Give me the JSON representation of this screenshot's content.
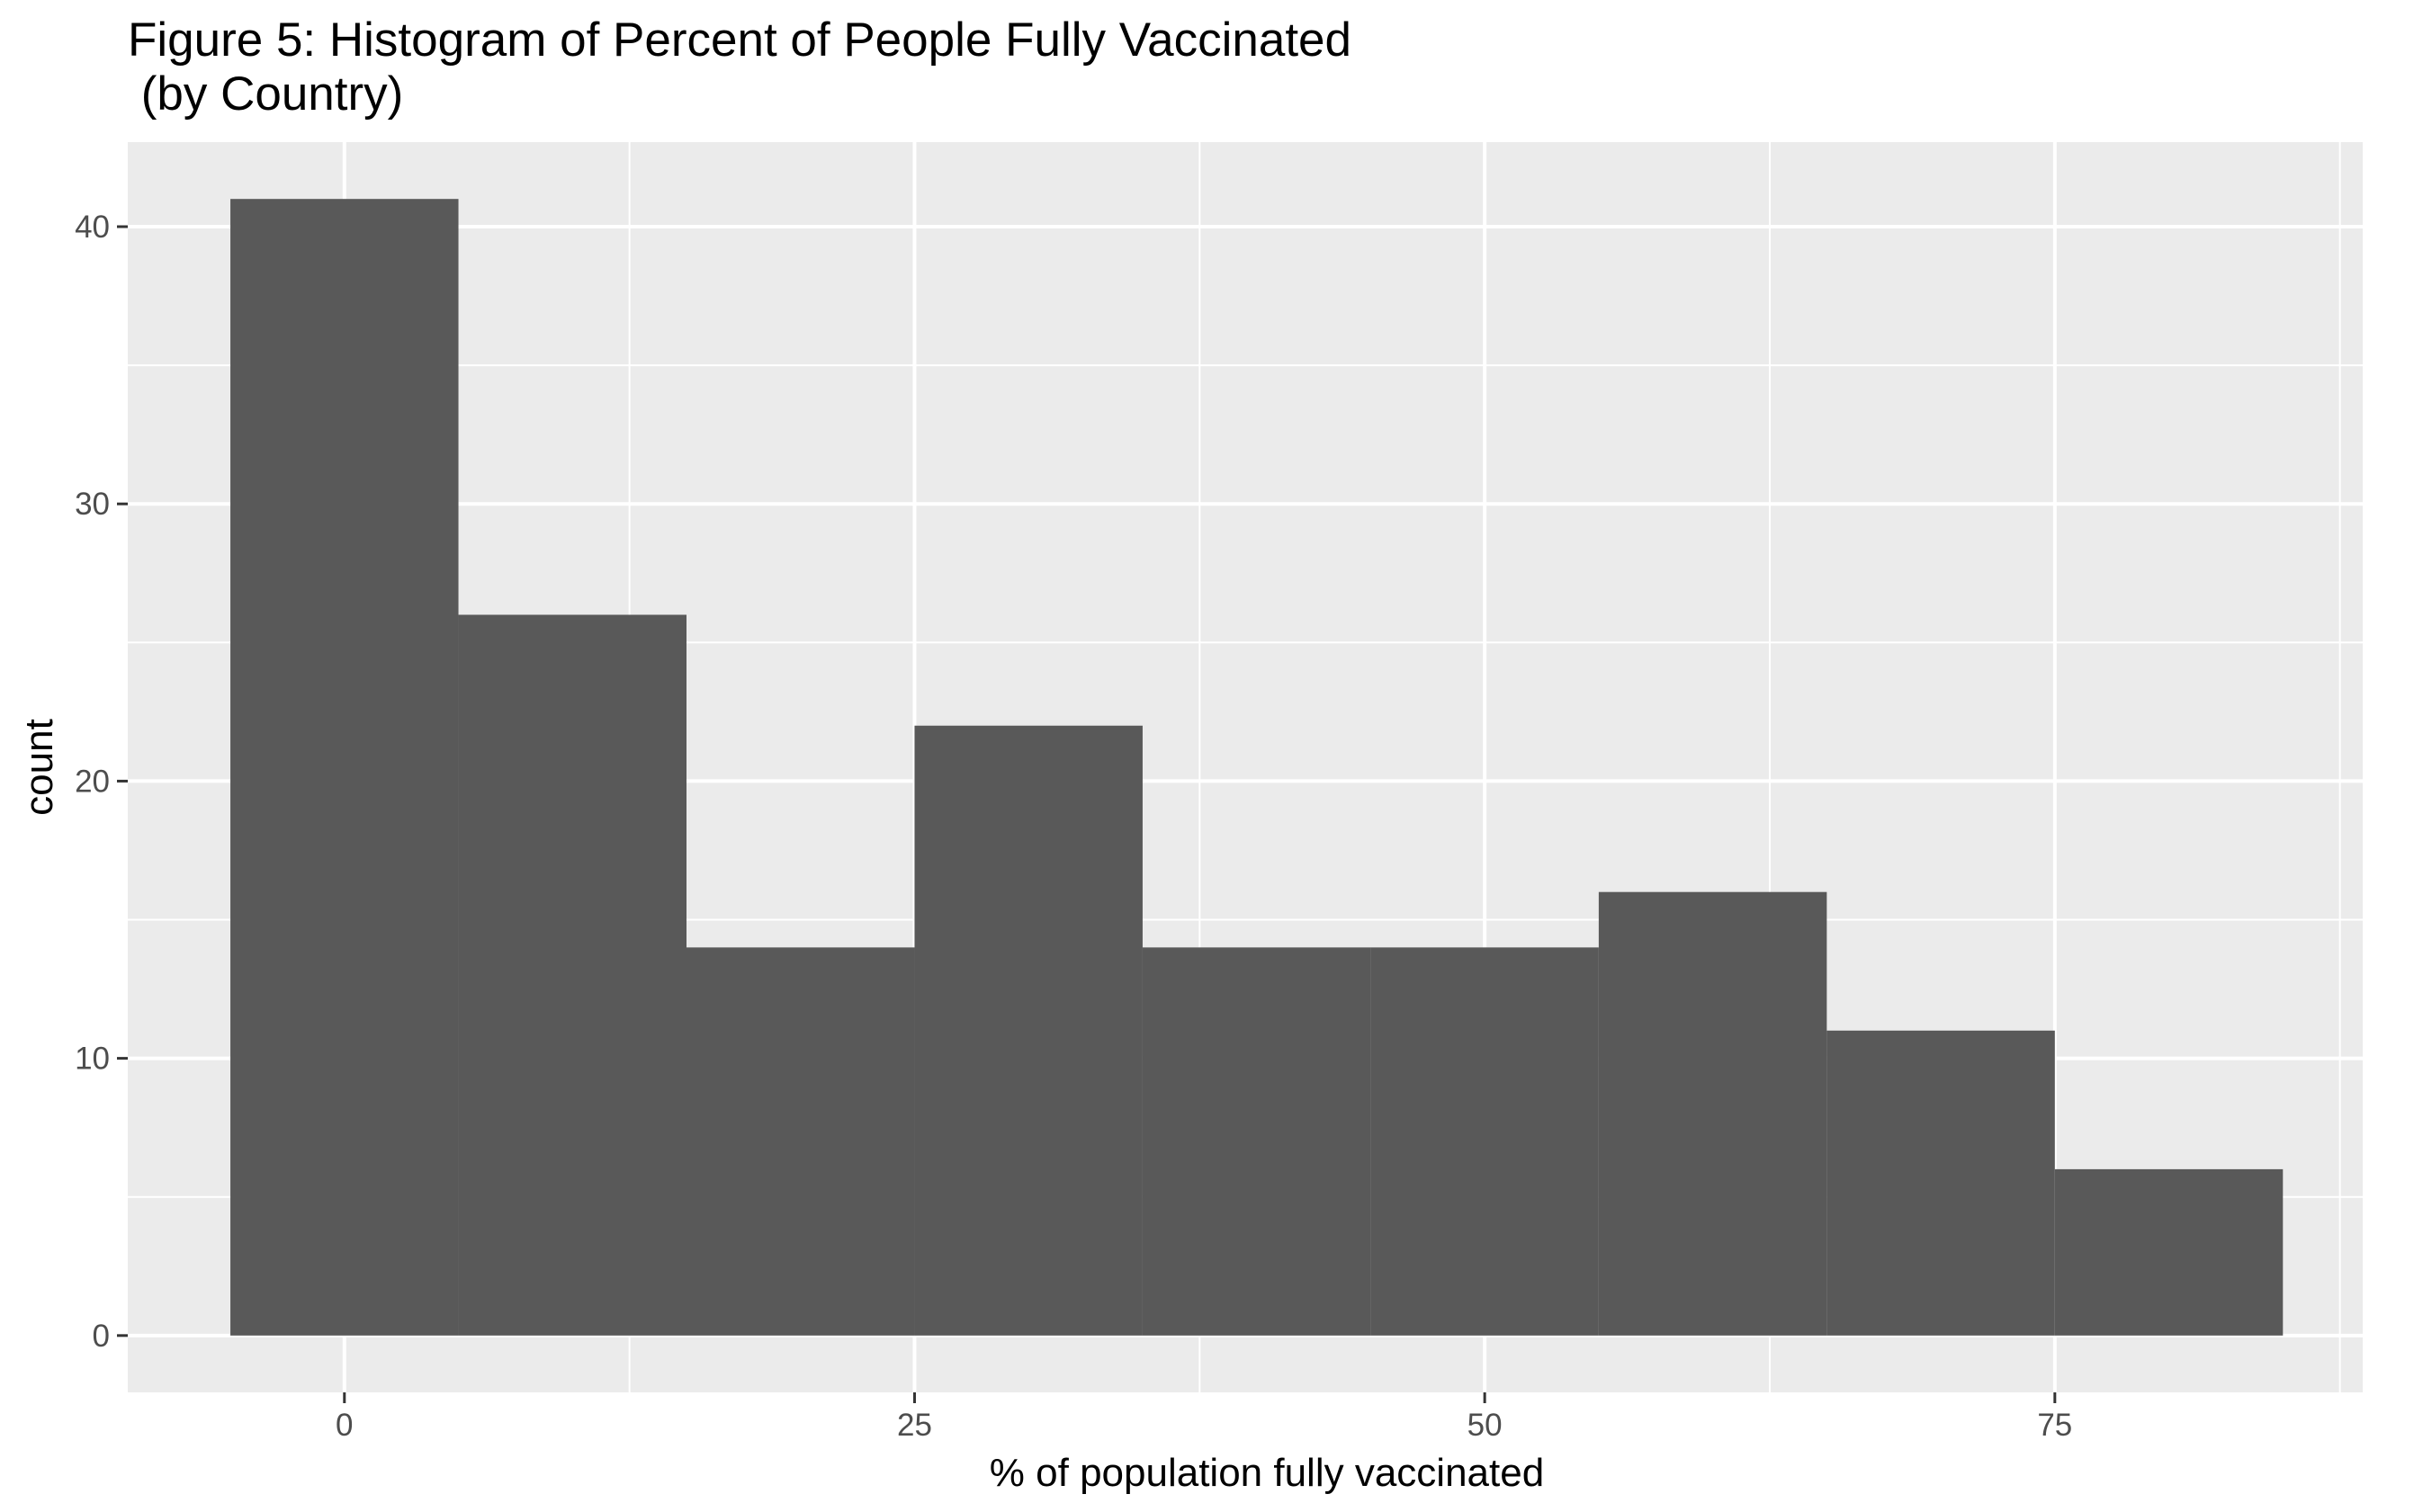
{
  "chart_data": {
    "type": "bar",
    "title": "Figure 5: Histogram of Percent of People Fully Vaccinated",
    "subtitle": " (by Country)",
    "xlabel": "% of population fully vaccinated",
    "ylabel": "count",
    "bins": [
      {
        "x0": -5,
        "x1": 5,
        "count": 41
      },
      {
        "x0": 5,
        "x1": 15,
        "count": 26
      },
      {
        "x0": 15,
        "x1": 25,
        "count": 14
      },
      {
        "x0": 25,
        "x1": 35,
        "count": 22
      },
      {
        "x0": 35,
        "x1": 45,
        "count": 14
      },
      {
        "x0": 45,
        "x1": 55,
        "count": 14
      },
      {
        "x0": 55,
        "x1": 65,
        "count": 16
      },
      {
        "x0": 65,
        "x1": 75,
        "count": 11
      },
      {
        "x0": 75,
        "x1": 85,
        "count": 6
      }
    ],
    "xlim": [
      -9.5,
      88.5
    ],
    "ylim": [
      -2.05,
      43.05
    ],
    "x_ticks": [
      "0",
      "25",
      "50",
      "75"
    ],
    "y_ticks": [
      "0",
      "10",
      "20",
      "30",
      "40"
    ],
    "grid": true,
    "colors": {
      "panel": "#ebebeb",
      "grid": "#ffffff",
      "bar": "#595959",
      "tick_text": "#4d4d4d"
    }
  }
}
